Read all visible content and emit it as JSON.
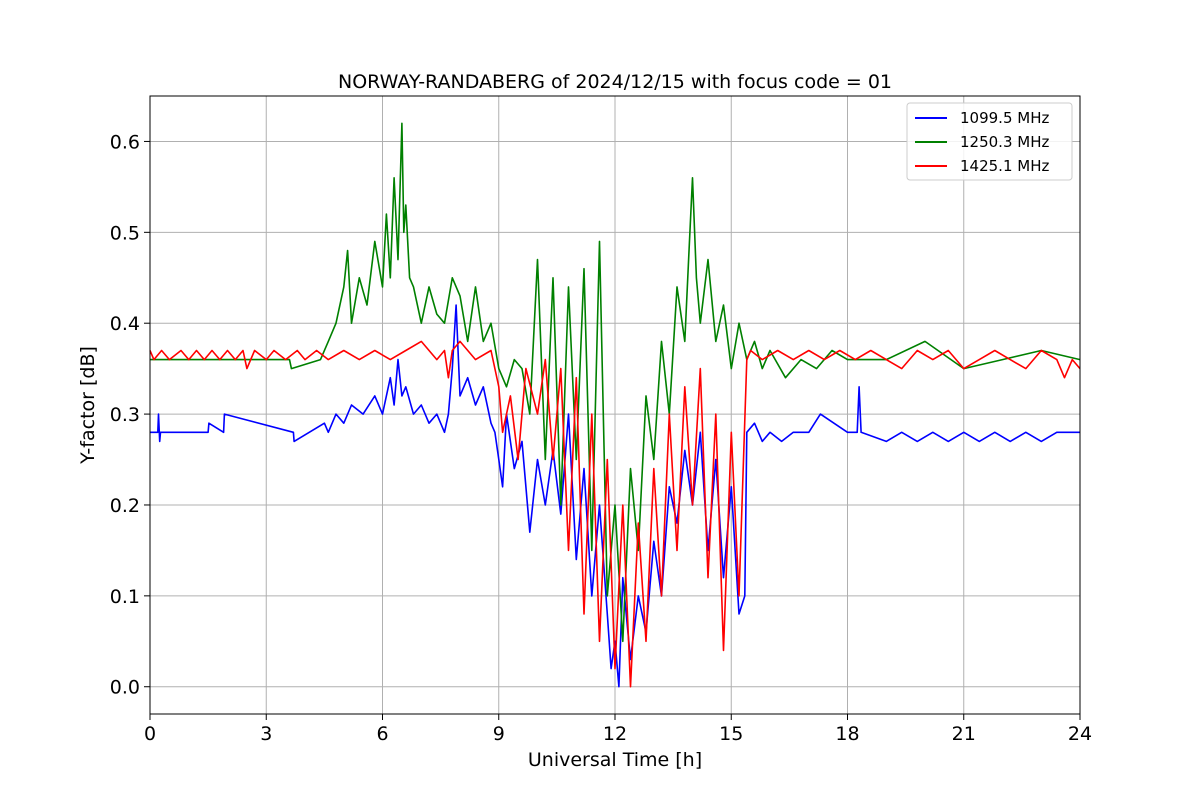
{
  "chart_data": {
    "type": "line",
    "title": "NORWAY-RANDABERG of 2024/12/15 with focus code = 01",
    "xlabel": "Universal Time [h]",
    "ylabel": "Y-factor [dB]",
    "xlim": [
      0,
      24
    ],
    "ylim": [
      -0.03,
      0.65
    ],
    "xticks": [
      0,
      3,
      6,
      9,
      12,
      15,
      18,
      21,
      24
    ],
    "xtick_labels": [
      "0",
      "3",
      "6",
      "9",
      "12",
      "15",
      "18",
      "21",
      "24"
    ],
    "yticks": [
      0.0,
      0.1,
      0.2,
      0.3,
      0.4,
      0.5,
      0.6
    ],
    "ytick_labels": [
      "0.0",
      "0.1",
      "0.2",
      "0.3",
      "0.4",
      "0.5",
      "0.6"
    ],
    "grid": true,
    "legend_position": "top-right",
    "series": [
      {
        "name": "1099.5 MHz",
        "color": "#0000ff",
        "x": [
          0,
          0.2,
          0.22,
          0.25,
          0.27,
          1.5,
          1.52,
          1.9,
          1.92,
          3.7,
          3.72,
          4.5,
          4.6,
          4.8,
          5.0,
          5.2,
          5.5,
          5.8,
          6.0,
          6.2,
          6.3,
          6.4,
          6.5,
          6.6,
          6.8,
          7.0,
          7.2,
          7.4,
          7.6,
          7.7,
          7.8,
          7.9,
          8.0,
          8.2,
          8.4,
          8.6,
          8.8,
          8.9,
          9.0,
          9.1,
          9.2,
          9.4,
          9.6,
          9.8,
          10.0,
          10.2,
          10.4,
          10.6,
          10.8,
          11.0,
          11.2,
          11.4,
          11.6,
          11.8,
          11.9,
          12.0,
          12.1,
          12.2,
          12.4,
          12.6,
          12.8,
          13.0,
          13.2,
          13.4,
          13.6,
          13.8,
          14.0,
          14.2,
          14.4,
          14.6,
          14.8,
          15.0,
          15.2,
          15.35,
          15.4,
          15.6,
          15.8,
          16.0,
          16.3,
          16.6,
          17.0,
          17.3,
          18.0,
          18.25,
          18.3,
          18.35,
          19.0,
          19.4,
          19.8,
          20.2,
          20.6,
          21.0,
          21.4,
          21.8,
          22.2,
          22.6,
          23.0,
          23.4,
          24.0
        ],
        "values": [
          0.28,
          0.28,
          0.3,
          0.27,
          0.28,
          0.28,
          0.29,
          0.28,
          0.3,
          0.28,
          0.27,
          0.29,
          0.28,
          0.3,
          0.29,
          0.31,
          0.3,
          0.32,
          0.3,
          0.34,
          0.31,
          0.36,
          0.32,
          0.33,
          0.3,
          0.31,
          0.29,
          0.3,
          0.28,
          0.3,
          0.35,
          0.42,
          0.32,
          0.34,
          0.31,
          0.33,
          0.29,
          0.28,
          0.25,
          0.22,
          0.3,
          0.24,
          0.27,
          0.17,
          0.25,
          0.2,
          0.26,
          0.19,
          0.3,
          0.14,
          0.24,
          0.1,
          0.2,
          0.08,
          0.02,
          0.05,
          0.0,
          0.12,
          0.03,
          0.1,
          0.06,
          0.16,
          0.1,
          0.22,
          0.18,
          0.26,
          0.2,
          0.28,
          0.15,
          0.25,
          0.12,
          0.22,
          0.08,
          0.1,
          0.28,
          0.29,
          0.27,
          0.28,
          0.27,
          0.28,
          0.28,
          0.3,
          0.28,
          0.28,
          0.33,
          0.28,
          0.27,
          0.28,
          0.27,
          0.28,
          0.27,
          0.28,
          0.27,
          0.28,
          0.27,
          0.28,
          0.27,
          0.28,
          0.28
        ]
      },
      {
        "name": "1250.3 MHz",
        "color": "#008000",
        "x": [
          0,
          3.6,
          3.65,
          4.4,
          4.6,
          4.8,
          5.0,
          5.1,
          5.2,
          5.4,
          5.6,
          5.8,
          6.0,
          6.1,
          6.2,
          6.3,
          6.4,
          6.5,
          6.55,
          6.6,
          6.7,
          6.8,
          7.0,
          7.2,
          7.4,
          7.6,
          7.8,
          8.0,
          8.2,
          8.4,
          8.6,
          8.8,
          9.0,
          9.2,
          9.4,
          9.6,
          9.8,
          10.0,
          10.2,
          10.4,
          10.6,
          10.8,
          11.0,
          11.2,
          11.4,
          11.6,
          11.8,
          12.0,
          12.2,
          12.4,
          12.6,
          12.8,
          13.0,
          13.2,
          13.4,
          13.6,
          13.8,
          13.9,
          14.0,
          14.1,
          14.2,
          14.4,
          14.6,
          14.8,
          15.0,
          15.2,
          15.4,
          15.6,
          15.8,
          16.0,
          16.4,
          16.8,
          17.2,
          17.6,
          18.0,
          19.0,
          20.0,
          21.0,
          22.0,
          23.0,
          24.0
        ],
        "values": [
          0.36,
          0.36,
          0.35,
          0.36,
          0.38,
          0.4,
          0.44,
          0.48,
          0.4,
          0.45,
          0.42,
          0.49,
          0.44,
          0.52,
          0.45,
          0.56,
          0.47,
          0.62,
          0.5,
          0.53,
          0.45,
          0.44,
          0.4,
          0.44,
          0.41,
          0.4,
          0.45,
          0.43,
          0.38,
          0.44,
          0.38,
          0.4,
          0.35,
          0.33,
          0.36,
          0.35,
          0.3,
          0.47,
          0.25,
          0.45,
          0.2,
          0.44,
          0.25,
          0.46,
          0.15,
          0.49,
          0.1,
          0.2,
          0.05,
          0.24,
          0.15,
          0.32,
          0.25,
          0.38,
          0.3,
          0.44,
          0.38,
          0.47,
          0.56,
          0.45,
          0.4,
          0.47,
          0.38,
          0.42,
          0.35,
          0.4,
          0.36,
          0.38,
          0.35,
          0.37,
          0.34,
          0.36,
          0.35,
          0.37,
          0.36,
          0.36,
          0.38,
          0.35,
          0.36,
          0.37,
          0.36
        ]
      },
      {
        "name": "1425.1 MHz",
        "color": "#ff0000",
        "x": [
          0,
          0.1,
          0.3,
          0.5,
          0.8,
          1.0,
          1.2,
          1.4,
          1.6,
          1.8,
          2.0,
          2.2,
          2.4,
          2.5,
          2.7,
          3.0,
          3.2,
          3.5,
          3.8,
          4.0,
          4.3,
          4.6,
          5.0,
          5.4,
          5.8,
          6.2,
          6.6,
          7.0,
          7.4,
          7.6,
          7.7,
          7.8,
          8.0,
          8.4,
          8.8,
          9.0,
          9.1,
          9.3,
          9.5,
          9.7,
          10.0,
          10.2,
          10.4,
          10.6,
          10.8,
          11.0,
          11.2,
          11.4,
          11.6,
          11.8,
          12.0,
          12.2,
          12.4,
          12.6,
          12.8,
          13.0,
          13.2,
          13.4,
          13.6,
          13.8,
          14.0,
          14.2,
          14.4,
          14.6,
          14.8,
          15.0,
          15.2,
          15.4,
          15.5,
          15.8,
          16.2,
          16.6,
          17.0,
          17.4,
          17.8,
          18.2,
          18.6,
          19.0,
          19.4,
          19.8,
          20.2,
          20.6,
          21.0,
          21.4,
          21.8,
          22.2,
          22.6,
          23.0,
          23.4,
          23.6,
          23.8,
          24.0
        ],
        "values": [
          0.37,
          0.36,
          0.37,
          0.36,
          0.37,
          0.36,
          0.37,
          0.36,
          0.37,
          0.36,
          0.37,
          0.36,
          0.37,
          0.35,
          0.37,
          0.36,
          0.37,
          0.36,
          0.37,
          0.36,
          0.37,
          0.36,
          0.37,
          0.36,
          0.37,
          0.36,
          0.37,
          0.38,
          0.36,
          0.37,
          0.34,
          0.37,
          0.38,
          0.36,
          0.37,
          0.33,
          0.28,
          0.32,
          0.25,
          0.35,
          0.3,
          0.36,
          0.25,
          0.35,
          0.15,
          0.34,
          0.08,
          0.3,
          0.05,
          0.25,
          0.02,
          0.2,
          0.0,
          0.18,
          0.05,
          0.24,
          0.1,
          0.3,
          0.15,
          0.33,
          0.2,
          0.35,
          0.12,
          0.3,
          0.04,
          0.28,
          0.1,
          0.36,
          0.37,
          0.36,
          0.37,
          0.36,
          0.37,
          0.36,
          0.37,
          0.36,
          0.37,
          0.36,
          0.35,
          0.37,
          0.36,
          0.37,
          0.35,
          0.36,
          0.37,
          0.36,
          0.35,
          0.37,
          0.36,
          0.34,
          0.36,
          0.35
        ]
      }
    ]
  }
}
